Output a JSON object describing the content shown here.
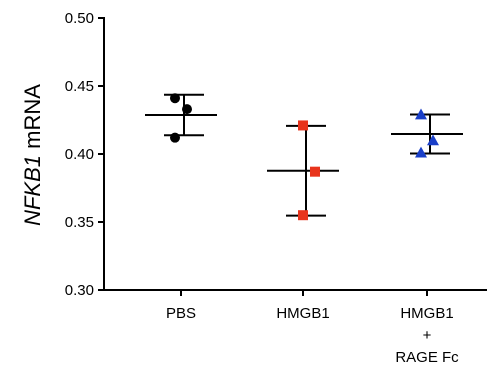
{
  "chart_data": {
    "type": "scatter",
    "title": "",
    "ylabel_italic": "NFKB1",
    "ylabel_rest": " mRNA",
    "ylim": [
      0.3,
      0.5
    ],
    "yticks": [
      "0.30",
      "0.35",
      "0.40",
      "0.45",
      "0.50"
    ],
    "yticks_values": [
      0.3,
      0.35,
      0.4,
      0.45,
      0.5
    ],
    "groups": [
      {
        "label_lines": [
          "PBS"
        ],
        "marker": "circle",
        "color": "#000000",
        "points": [
          0.441,
          0.433,
          0.412
        ],
        "mean": 0.4287,
        "error_upper": 0.4436,
        "error_lower": 0.4138
      },
      {
        "label_lines": [
          "HMGB1"
        ],
        "marker": "square",
        "color": "#e8341c",
        "points": [
          0.421,
          0.387,
          0.355
        ],
        "mean": 0.3877,
        "error_upper": 0.4207,
        "error_lower": 0.3547
      },
      {
        "label_lines": [
          "HMGB1",
          "+",
          "RAGE Fc"
        ],
        "marker": "triangle",
        "color": "#1a3fc8",
        "points": [
          0.429,
          0.41,
          0.401
        ],
        "mean": 0.4147,
        "error_upper": 0.429,
        "error_lower": 0.4004
      }
    ]
  }
}
